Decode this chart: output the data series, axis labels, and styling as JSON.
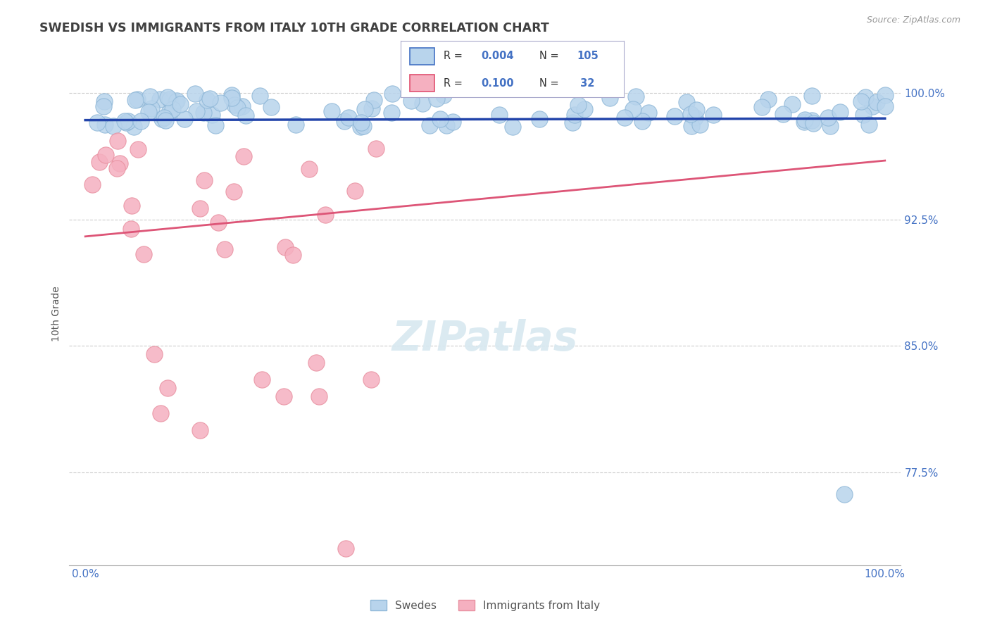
{
  "title": "SWEDISH VS IMMIGRANTS FROM ITALY 10TH GRADE CORRELATION CHART",
  "source_text": "Source: ZipAtlas.com",
  "ylabel": "10th Grade",
  "y_tick_labels": [
    "77.5%",
    "85.0%",
    "92.5%",
    "100.0%"
  ],
  "y_tick_values": [
    0.775,
    0.85,
    0.925,
    1.0
  ],
  "ylim": [
    0.72,
    1.018
  ],
  "xlim": [
    -0.02,
    1.02
  ],
  "background_color": "#ffffff",
  "grid_color": "#cccccc",
  "title_color": "#404040",
  "right_label_color": "#4472c4",
  "trend_blue_color": "#2244aa",
  "trend_pink_color": "#dd5577",
  "swedes_color": "#b8d4ec",
  "swedes_edge": "#90b8d8",
  "italy_color": "#f5b0c0",
  "italy_edge": "#e890a0",
  "swedes_trend_y0": 0.984,
  "swedes_trend_y1": 0.985,
  "italy_trend_y0": 0.915,
  "italy_trend_y1": 0.96,
  "legend_R_blue": "0.004",
  "legend_N_blue": "105",
  "legend_R_pink": "0.100",
  "legend_N_pink": " 32",
  "legend_stat_color": "#4472c4",
  "legend_box_color": "#aaaacc",
  "swedes_label": "Swedes",
  "italy_label": "Immigrants from Italy"
}
